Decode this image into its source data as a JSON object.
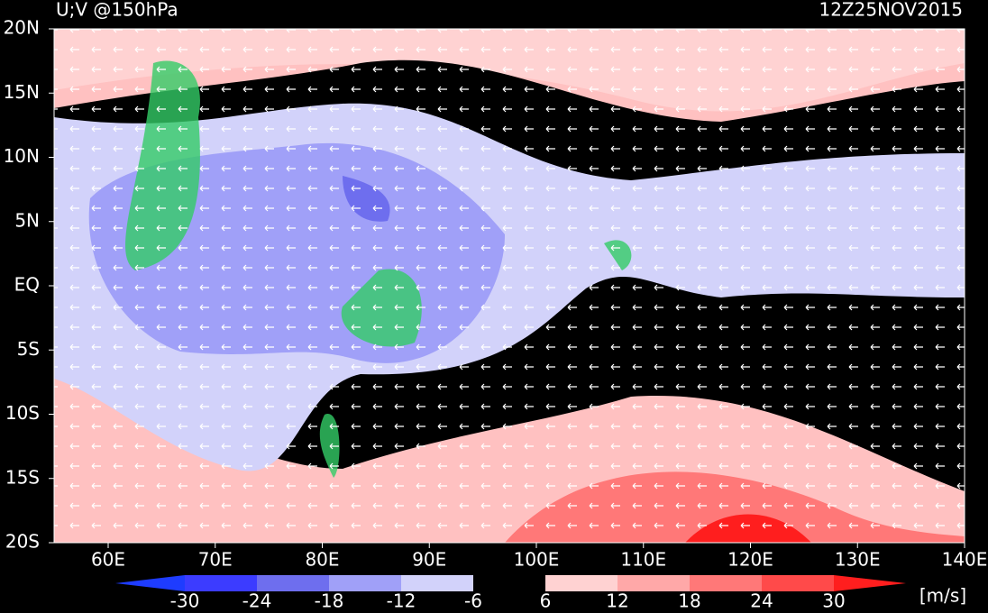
{
  "header": {
    "title": "U;V @150hPa",
    "time": "12Z25NOV2015"
  },
  "map": {
    "lat_labels": [
      "20N",
      "15N",
      "10N",
      "5N",
      "EQ",
      "5S",
      "10S",
      "15S",
      "20S"
    ],
    "lon_labels": [
      "60E",
      "70E",
      "80E",
      "90E",
      "100E",
      "110E",
      "120E",
      "130E",
      "140E"
    ]
  },
  "colorbar": {
    "labels": [
      "-30",
      "-24",
      "-18",
      "-12",
      "-6",
      "6",
      "12",
      "18",
      "24",
      "30"
    ],
    "colors": [
      "#1e3cff",
      "#3c3cff",
      "#6e6eee",
      "#a0a0f8",
      "#d2d2fa",
      "#000000",
      "#ffd2d2",
      "#ffa8a8",
      "#ff7878",
      "#ff4a4a",
      "#ff1e1e"
    ],
    "units": "[m/s]"
  }
}
